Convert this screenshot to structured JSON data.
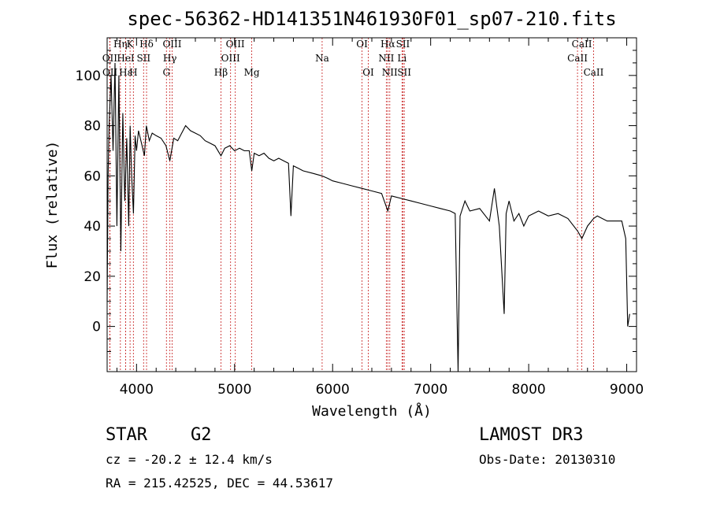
{
  "chart_data": {
    "type": "line",
    "title": "spec-56362-HD141351N461930F01_sp07-210.fits",
    "xlabel": "Wavelength (Å)",
    "ylabel": "Flux (relative)",
    "xlim": [
      3700,
      9100
    ],
    "ylim": [
      -18,
      115
    ],
    "x_ticks": [
      4000,
      5000,
      6000,
      7000,
      8000,
      9000
    ],
    "y_ticks": [
      0,
      20,
      40,
      60,
      80,
      100
    ],
    "series": [
      {
        "name": "flux",
        "x": [
          3700,
          3710,
          3720,
          3740,
          3760,
          3780,
          3800,
          3820,
          3840,
          3860,
          3880,
          3900,
          3920,
          3935,
          3950,
          3968,
          3985,
          4000,
          4020,
          4050,
          4080,
          4100,
          4130,
          4160,
          4200,
          4250,
          4300,
          4340,
          4380,
          4420,
          4460,
          4500,
          4550,
          4600,
          4650,
          4700,
          4750,
          4800,
          4861,
          4900,
          4950,
          5000,
          5050,
          5100,
          5150,
          5175,
          5200,
          5250,
          5300,
          5350,
          5400,
          5450,
          5500,
          5550,
          5575,
          5600,
          5650,
          5700,
          5800,
          5890,
          5950,
          6000,
          6100,
          6200,
          6300,
          6400,
          6500,
          6563,
          6600,
          6700,
          6800,
          6900,
          7000,
          7100,
          7200,
          7250,
          7280,
          7300,
          7350,
          7400,
          7500,
          7600,
          7650,
          7700,
          7750,
          7770,
          7800,
          7850,
          7900,
          7950,
          8000,
          8100,
          8200,
          8300,
          8400,
          8500,
          8542,
          8600,
          8662,
          8700,
          8800,
          8900,
          8950,
          8990,
          9010,
          9030
        ],
        "y": [
          10,
          60,
          80,
          100,
          70,
          105,
          40,
          100,
          30,
          85,
          50,
          75,
          40,
          80,
          60,
          45,
          76,
          70,
          78,
          73,
          68,
          80,
          74,
          77,
          76,
          75,
          72,
          66,
          75,
          74,
          77,
          80,
          78,
          77,
          76,
          74,
          73,
          72,
          68,
          71,
          72,
          70,
          71,
          70,
          70,
          62,
          69,
          68,
          69,
          67,
          66,
          67,
          66,
          65,
          44,
          64,
          63,
          62,
          61,
          60,
          59,
          58,
          57,
          56,
          55,
          54,
          53,
          46,
          52,
          51,
          50,
          49,
          48,
          47,
          46,
          45,
          -18,
          44,
          50,
          46,
          47,
          42,
          55,
          40,
          5,
          45,
          50,
          42,
          45,
          40,
          44,
          46,
          44,
          45,
          43,
          38,
          35,
          40,
          43,
          44,
          42,
          42,
          42,
          35,
          0,
          5
        ]
      }
    ],
    "spectral_lines": [
      {
        "name": "Hη",
        "x": 3835,
        "row": 0
      },
      {
        "name": "K",
        "x": 3934,
        "row": 0
      },
      {
        "name": "Hδ",
        "x": 4102,
        "row": 0
      },
      {
        "name": "OIII",
        "x": 4363,
        "row": 0
      },
      {
        "name": "OIII",
        "x": 5007,
        "row": 0
      },
      {
        "name": "OI",
        "x": 6300,
        "row": 0
      },
      {
        "name": "Hα",
        "x": 6563,
        "row": 0
      },
      {
        "name": "SII",
        "x": 6717,
        "row": 0
      },
      {
        "name": "CaII",
        "x": 8542,
        "row": 0
      },
      {
        "name": "OII",
        "x": 3727,
        "row": 1
      },
      {
        "name": "HeI",
        "x": 3889,
        "row": 1
      },
      {
        "name": "SII",
        "x": 4072,
        "row": 1
      },
      {
        "name": "Hγ",
        "x": 4340,
        "row": 1
      },
      {
        "name": "OIII",
        "x": 4959,
        "row": 1
      },
      {
        "name": "Na",
        "x": 5893,
        "row": 1
      },
      {
        "name": "NII",
        "x": 6548,
        "row": 1
      },
      {
        "name": "Li",
        "x": 6708,
        "row": 1
      },
      {
        "name": "CaII",
        "x": 8498,
        "row": 1
      },
      {
        "name": "OII",
        "x": 3729,
        "row": 2
      },
      {
        "name": "Hε",
        "x": 3889,
        "row": 2
      },
      {
        "name": "H",
        "x": 3968,
        "row": 2
      },
      {
        "name": "G",
        "x": 4305,
        "row": 2
      },
      {
        "name": "Hβ",
        "x": 4861,
        "row": 2
      },
      {
        "name": "Mg",
        "x": 5175,
        "row": 2
      },
      {
        "name": "OI",
        "x": 6364,
        "row": 2
      },
      {
        "name": "NII",
        "x": 6583,
        "row": 2
      },
      {
        "name": "SII",
        "x": 6731,
        "row": 2
      },
      {
        "name": "CaII",
        "x": 8662,
        "row": 2
      }
    ],
    "line_color": "#cc3333"
  },
  "info": {
    "object_class": "STAR",
    "subclass": "G2",
    "survey": "LAMOST DR3",
    "redshift": "cz = -20.2 ± 12.4 km/s",
    "obs_date": "Obs-Date: 20130310",
    "coords": "RA = 215.42525, DEC =  44.53617"
  }
}
